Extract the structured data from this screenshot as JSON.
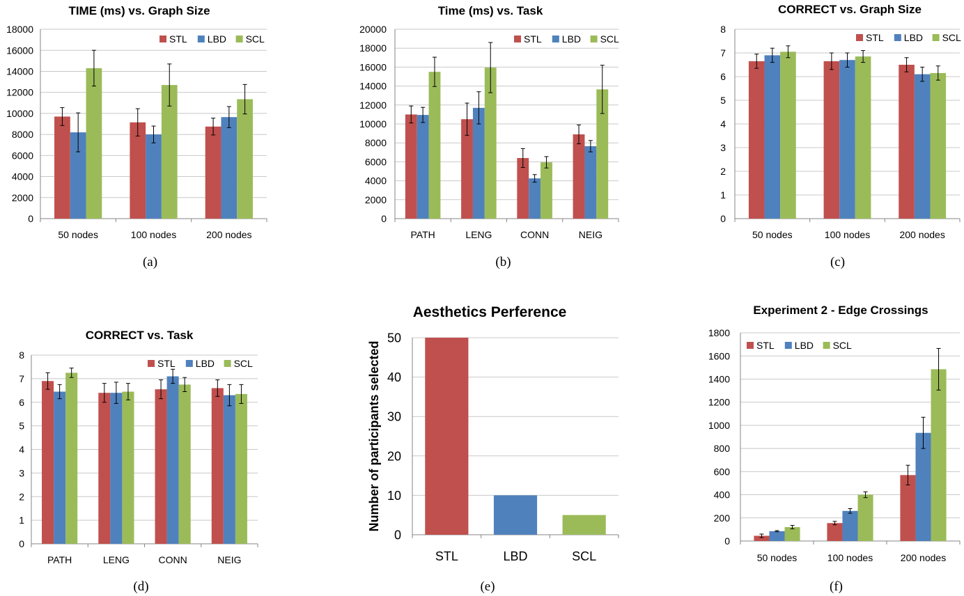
{
  "chart_data": [
    {
      "type": "bar",
      "title": "TIME (ms) vs. Graph Size",
      "caption": "(a)",
      "categories": [
        "50 nodes",
        "100 nodes",
        "200 nodes"
      ],
      "series": [
        {
          "name": "STL",
          "color": "#c0504d",
          "values": [
            9700,
            9150,
            8750
          ],
          "errors": [
            850,
            1300,
            800
          ]
        },
        {
          "name": "LBD",
          "color": "#4f81bd",
          "values": [
            8200,
            8000,
            9650
          ],
          "errors": [
            1850,
            800,
            1000
          ]
        },
        {
          "name": "SCL",
          "color": "#9bbb59",
          "values": [
            14300,
            12700,
            11350
          ],
          "errors": [
            1700,
            2000,
            1400
          ]
        }
      ],
      "ylim": [
        0,
        18000
      ],
      "yticks": [
        "0",
        "2000",
        "4000",
        "6000",
        "8000",
        "10000",
        "12000",
        "14000",
        "16000",
        "18000"
      ],
      "grid": true,
      "legend": "top-right"
    },
    {
      "type": "bar",
      "title": "Time (ms) vs. Task",
      "caption": "(b)",
      "categories": [
        "PATH",
        "LENG",
        "CONN",
        "NEIG"
      ],
      "series": [
        {
          "name": "STL",
          "color": "#c0504d",
          "values": [
            11000,
            10500,
            6400,
            8900
          ],
          "errors": [
            900,
            1700,
            1000,
            1000
          ]
        },
        {
          "name": "LBD",
          "color": "#4f81bd",
          "values": [
            10950,
            11700,
            4250,
            7650
          ],
          "errors": [
            800,
            1700,
            400,
            600
          ]
        },
        {
          "name": "SCL",
          "color": "#9bbb59",
          "values": [
            15500,
            15950,
            5950,
            13650
          ],
          "errors": [
            1550,
            2650,
            600,
            2550
          ]
        }
      ],
      "ylim": [
        0,
        20000
      ],
      "yticks": [
        "0",
        "2000",
        "4000",
        "6000",
        "8000",
        "10000",
        "12000",
        "14000",
        "16000",
        "18000",
        "20000"
      ],
      "grid": true,
      "legend": "top-right"
    },
    {
      "type": "bar",
      "title": "CORRECT vs. Graph Size",
      "caption": "(c)",
      "categories": [
        "50 nodes",
        "100 nodes",
        "200 nodes"
      ],
      "series": [
        {
          "name": "STL",
          "color": "#c0504d",
          "values": [
            6.65,
            6.65,
            6.5
          ],
          "errors": [
            0.3,
            0.35,
            0.3
          ]
        },
        {
          "name": "LBD",
          "color": "#4f81bd",
          "values": [
            6.9,
            6.7,
            6.1
          ],
          "errors": [
            0.3,
            0.3,
            0.3
          ]
        },
        {
          "name": "SCL",
          "color": "#9bbb59",
          "values": [
            7.05,
            6.85,
            6.15
          ],
          "errors": [
            0.25,
            0.25,
            0.3
          ]
        }
      ],
      "ylim": [
        0,
        8
      ],
      "yticks": [
        "0",
        "1",
        "2",
        "3",
        "4",
        "5",
        "6",
        "7",
        "8"
      ],
      "grid": true,
      "legend": "top-right"
    },
    {
      "type": "bar",
      "title": "CORRECT vs. Task",
      "caption": "(d)",
      "categories": [
        "PATH",
        "LENG",
        "CONN",
        "NEIG"
      ],
      "series": [
        {
          "name": "STL",
          "color": "#c0504d",
          "values": [
            6.9,
            6.4,
            6.55,
            6.6
          ],
          "errors": [
            0.35,
            0.4,
            0.4,
            0.35
          ]
        },
        {
          "name": "LBD",
          "color": "#4f81bd",
          "values": [
            6.45,
            6.4,
            7.1,
            6.3
          ],
          "errors": [
            0.3,
            0.45,
            0.3,
            0.45
          ]
        },
        {
          "name": "SCL",
          "color": "#9bbb59",
          "values": [
            7.25,
            6.45,
            6.75,
            6.35
          ],
          "errors": [
            0.2,
            0.35,
            0.3,
            0.4
          ]
        }
      ],
      "ylim": [
        0,
        8
      ],
      "yticks": [
        "0",
        "1",
        "2",
        "3",
        "4",
        "5",
        "6",
        "7",
        "8"
      ],
      "grid": true,
      "legend": "top-right"
    },
    {
      "type": "bar",
      "title": "Aesthetics Perference",
      "caption": "(e)",
      "ylabel": "Number of participants selected",
      "categories": [
        "STL",
        "LBD",
        "SCL"
      ],
      "colors": [
        "#c0504d",
        "#4f81bd",
        "#9bbb59"
      ],
      "values": [
        50,
        10,
        5
      ],
      "ylim": [
        0,
        50
      ],
      "yticks": [
        "0",
        "10",
        "20",
        "30",
        "40",
        "50"
      ],
      "grid": true
    },
    {
      "type": "bar",
      "title": "Experiment 2 - Edge Crossings",
      "caption": "(f)",
      "categories": [
        "50 nodes",
        "100 nodes",
        "200 nodes"
      ],
      "series": [
        {
          "name": "STL",
          "color": "#c0504d",
          "values": [
            45,
            155,
            570
          ],
          "errors": [
            15,
            15,
            85
          ]
        },
        {
          "name": "LBD",
          "color": "#4f81bd",
          "values": [
            85,
            260,
            935
          ],
          "errors": [
            5,
            20,
            135
          ]
        },
        {
          "name": "SCL",
          "color": "#9bbb59",
          "values": [
            120,
            400,
            1485
          ],
          "errors": [
            15,
            25,
            180
          ]
        }
      ],
      "ylim": [
        0,
        1800
      ],
      "yticks": [
        "0",
        "200",
        "400",
        "600",
        "800",
        "1000",
        "1200",
        "1400",
        "1600",
        "1800"
      ],
      "grid": true,
      "legend": "top-left"
    }
  ]
}
